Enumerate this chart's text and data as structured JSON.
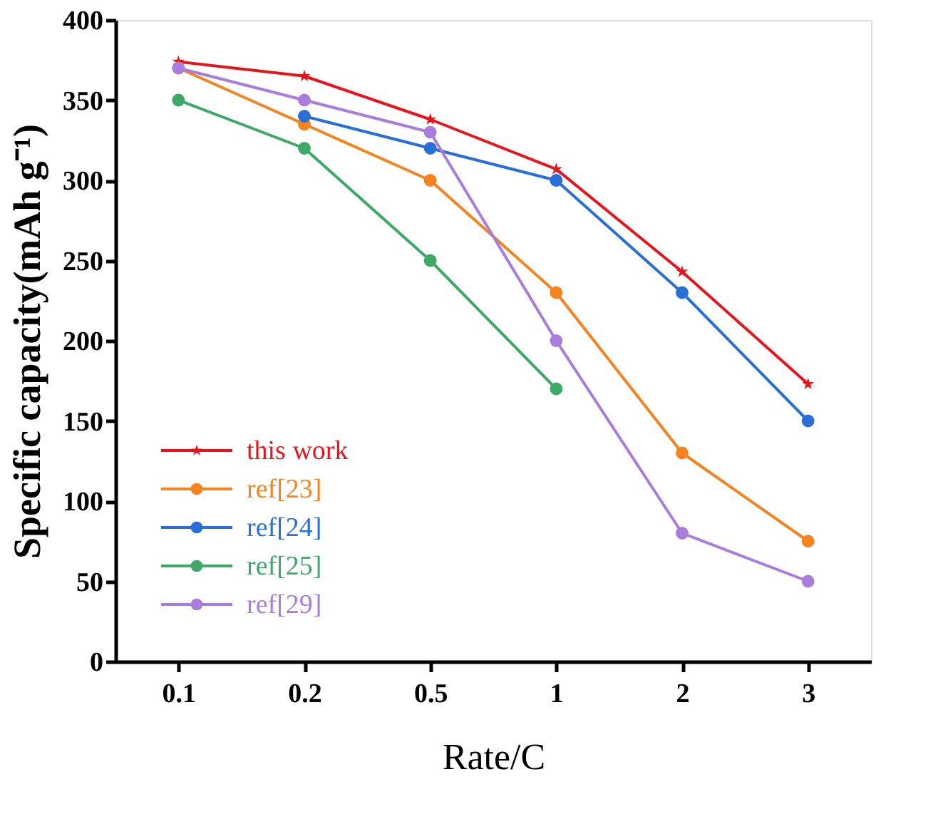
{
  "chart_data": {
    "type": "line",
    "xlabel": "Rate/C",
    "ylabel": "Specific capacity(mAh g⁻¹)",
    "categories": [
      "0.1",
      "0.2",
      "0.5",
      "1",
      "2",
      "3"
    ],
    "ylim": [
      0,
      400
    ],
    "yticks": [
      0,
      50,
      100,
      150,
      200,
      250,
      300,
      350,
      400
    ],
    "grid": false,
    "legend": "bottom left",
    "series": [
      {
        "name": "this work",
        "color": "#e8141c",
        "marker": "star",
        "values": [
          374,
          365,
          338,
          307,
          243,
          173
        ]
      },
      {
        "name": "ref[23]",
        "color": "#f5831f",
        "marker": "circle",
        "values": [
          370,
          335,
          300,
          230,
          130,
          75
        ]
      },
      {
        "name": "ref[24]",
        "color": "#2a6fd6",
        "marker": "circle",
        "values": [
          null,
          340,
          320,
          300,
          230,
          150
        ]
      },
      {
        "name": "ref[25]",
        "color": "#3ea866",
        "marker": "circle",
        "values": [
          350,
          320,
          250,
          170,
          null,
          null
        ]
      },
      {
        "name": "ref[29]",
        "color": "#a97ddc",
        "marker": "circle",
        "values": [
          370,
          350,
          330,
          200,
          80,
          50
        ]
      }
    ]
  }
}
